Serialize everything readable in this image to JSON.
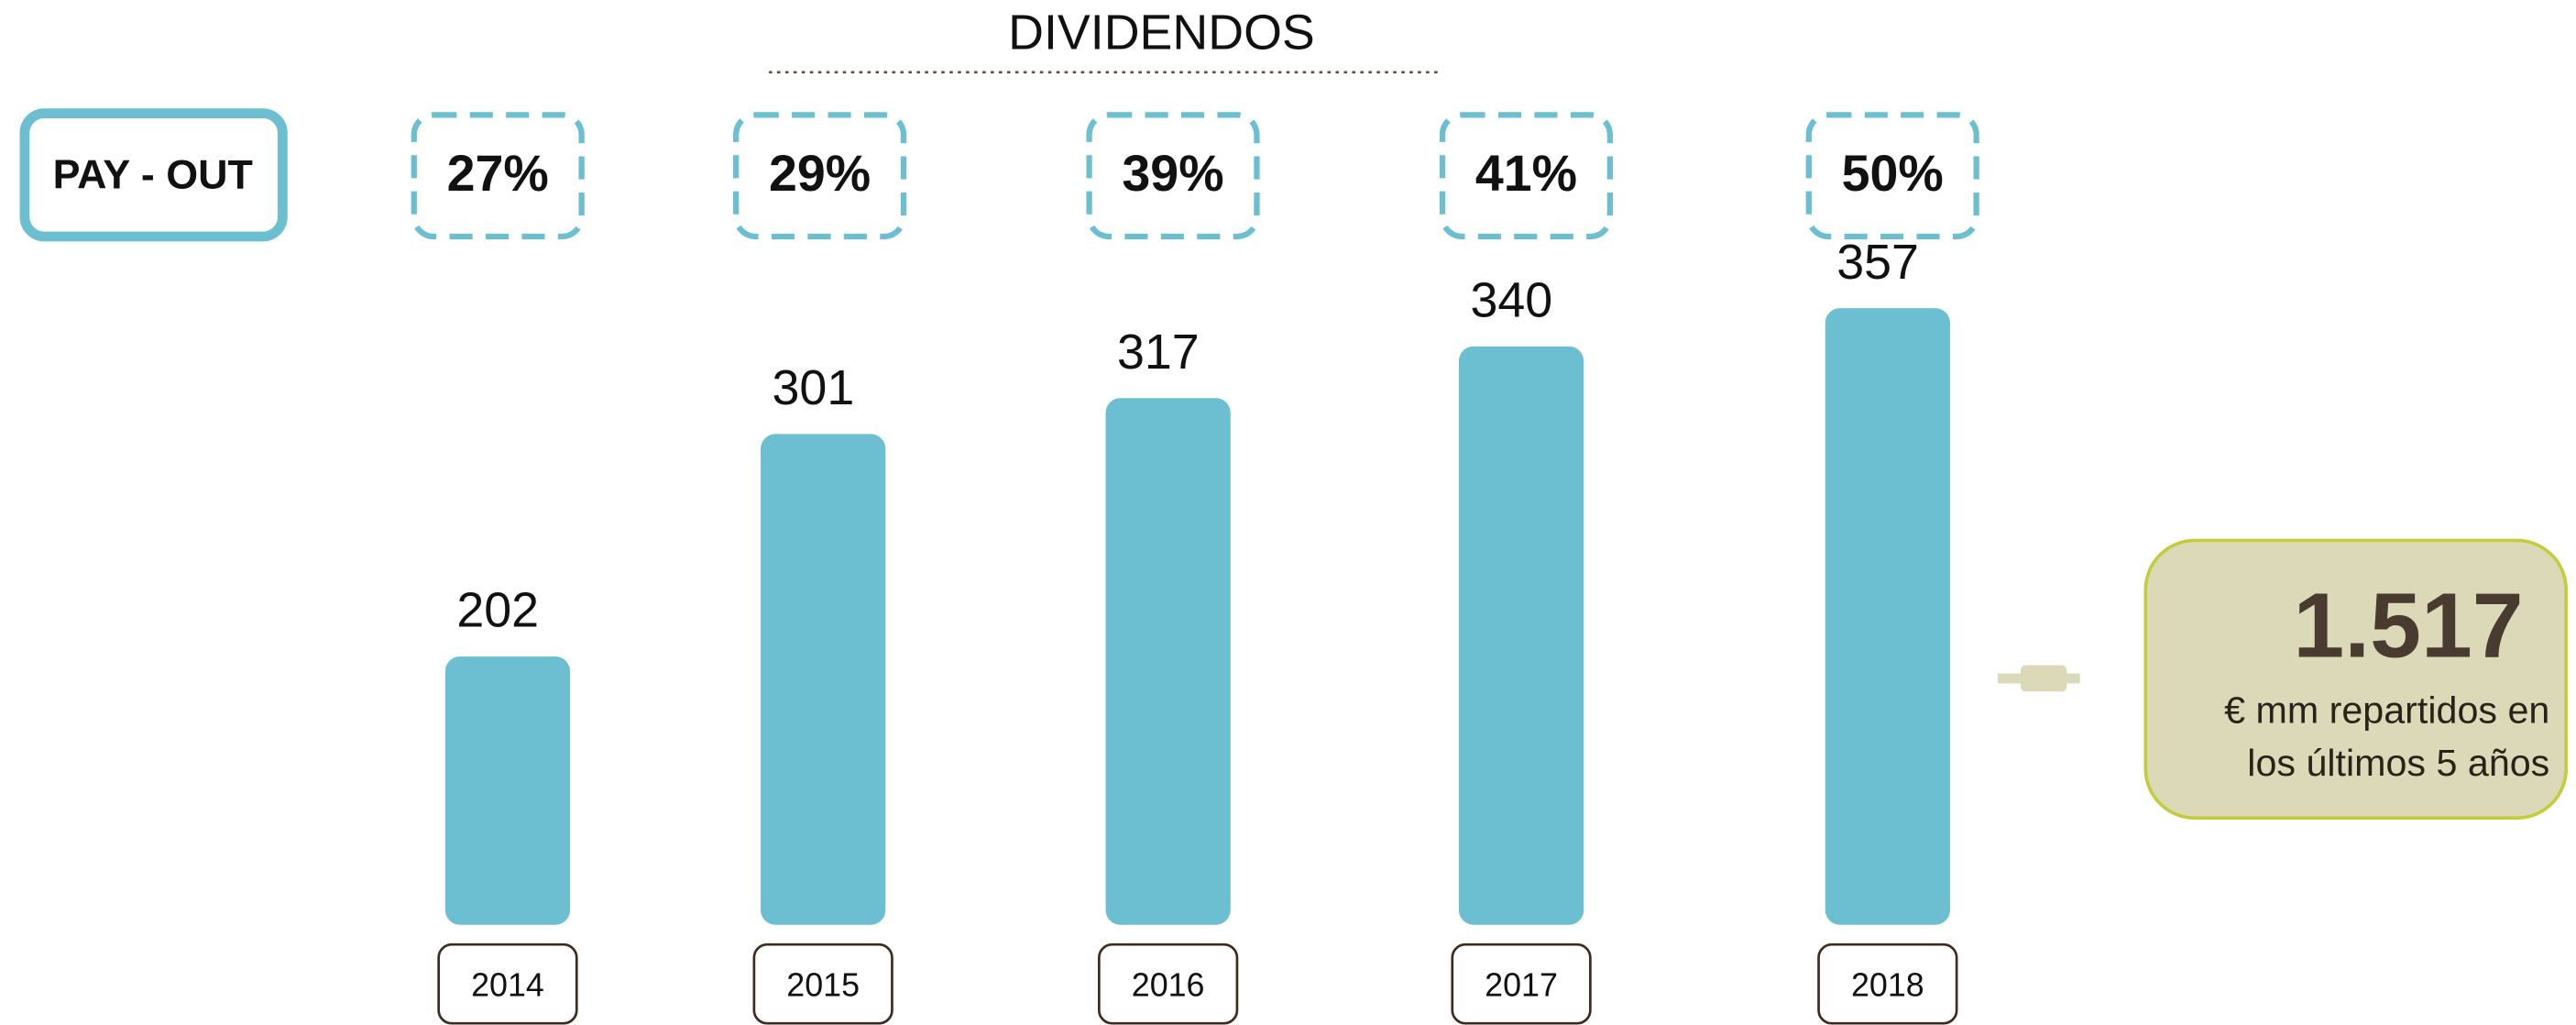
{
  "chart_data": {
    "type": "bar",
    "title": "DIVIDENDOS",
    "categories": [
      "2014",
      "2015",
      "2016",
      "2017",
      "2018"
    ],
    "values": [
      202,
      301,
      317,
      340,
      357
    ],
    "color": "#6bbfd1",
    "payout_label": "PAY - OUT",
    "payout": [
      27,
      29,
      39,
      41,
      50
    ],
    "payout_labels": [
      "27%",
      "29%",
      "39%",
      "41%",
      "50%"
    ],
    "total": {
      "value": 1517,
      "label": "1.517"
    },
    "total_note": [
      "€ mm repartidos  en",
      "los últimos 5 años"
    ]
  }
}
